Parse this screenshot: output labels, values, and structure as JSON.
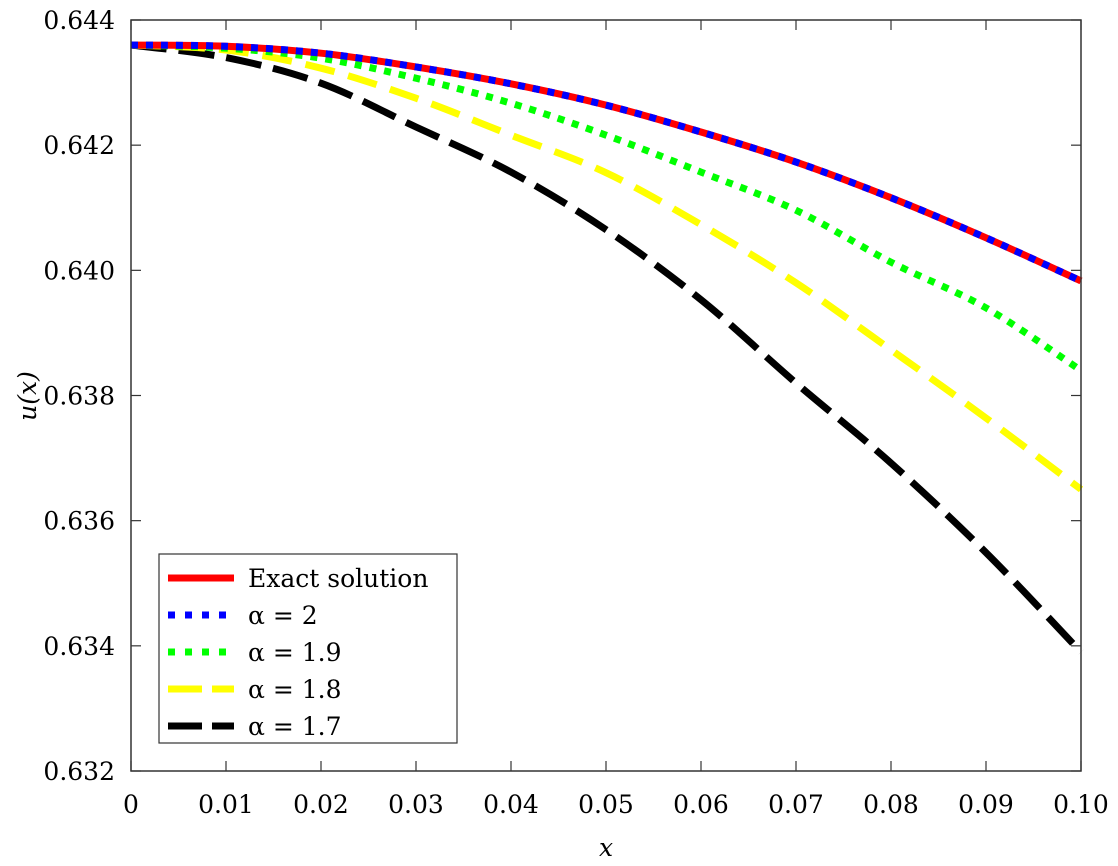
{
  "chart_data": {
    "type": "line",
    "title": "",
    "xlabel": "x",
    "ylabel": "u(x)",
    "xlim": [
      0,
      0.1
    ],
    "ylim": [
      0.632,
      0.644
    ],
    "grid": false,
    "legend_position": "bottom-left",
    "x_ticks": [
      "0",
      "0.01",
      "0.02",
      "0.03",
      "0.04",
      "0.05",
      "0.06",
      "0.07",
      "0.08",
      "0.09",
      "0.10"
    ],
    "x_tick_values": [
      0,
      0.01,
      0.02,
      0.03,
      0.04,
      0.05,
      0.06,
      0.07,
      0.08,
      0.09,
      0.1
    ],
    "y_ticks": [
      "0.632",
      "0.634",
      "0.636",
      "0.638",
      "0.640",
      "0.642",
      "0.644"
    ],
    "y_tick_values": [
      0.632,
      0.634,
      0.636,
      0.638,
      0.64,
      0.642,
      0.644
    ],
    "x": [
      0,
      0.01,
      0.02,
      0.03,
      0.04,
      0.05,
      0.06,
      0.07,
      0.08,
      0.09,
      0.1
    ],
    "series": [
      {
        "name": "Exact solution",
        "color": "#ff0000",
        "style": "solid",
        "values": [
          0.6436,
          0.64358,
          0.64347,
          0.64325,
          0.64298,
          0.64264,
          0.64221,
          0.64173,
          0.64116,
          0.64052,
          0.63983
        ]
      },
      {
        "name": "α = 2",
        "color": "#0000ff",
        "style": "dotted",
        "values": [
          0.6436,
          0.64358,
          0.64347,
          0.64325,
          0.64298,
          0.64264,
          0.64221,
          0.64173,
          0.64116,
          0.64052,
          0.63983
        ]
      },
      {
        "name": "α = 1.9",
        "color": "#00ff00",
        "style": "dotted",
        "values": [
          0.6436,
          0.64355,
          0.64339,
          0.64307,
          0.64267,
          0.64216,
          0.64157,
          0.64096,
          0.64013,
          0.6394,
          0.6384
        ]
      },
      {
        "name": "α = 1.8",
        "color": "#ffff00",
        "style": "dashed",
        "values": [
          0.6436,
          0.64352,
          0.64323,
          0.64275,
          0.64216,
          0.64156,
          0.64073,
          0.6398,
          0.63873,
          0.63764,
          0.6365
        ]
      },
      {
        "name": "α = 1.7",
        "color": "#000000",
        "style": "dashed",
        "values": [
          0.6436,
          0.6434,
          0.64299,
          0.64229,
          0.64157,
          0.64065,
          0.63953,
          0.6382,
          0.63692,
          0.63549,
          0.6339
        ]
      }
    ]
  }
}
